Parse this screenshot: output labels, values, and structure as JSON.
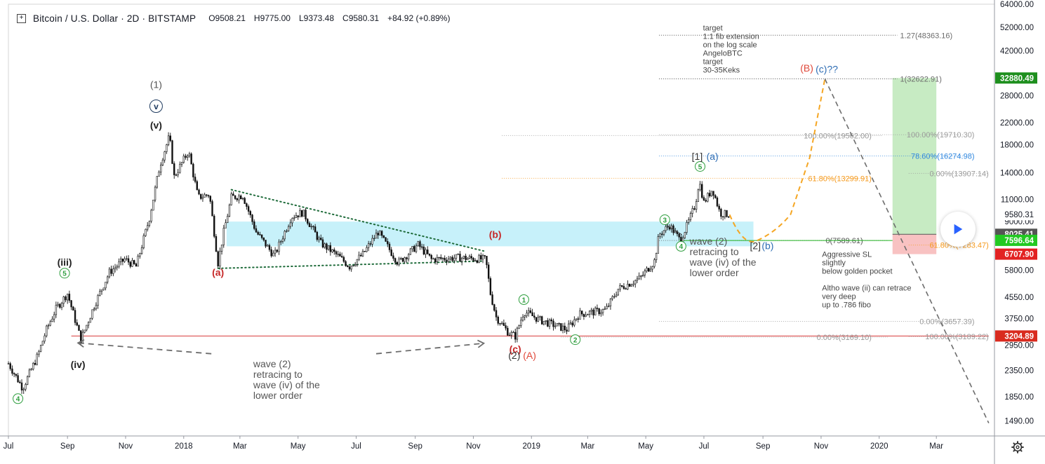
{
  "header": {
    "expand_icon": "plus-square-icon",
    "symbol": "Bitcoin / U.S. Dollar · 2D · BITSTAMP",
    "open": "O9508.21",
    "high": "H9775.00",
    "low": "L9373.48",
    "close": "C9580.31",
    "change": "+84.92 (+0.89%)"
  },
  "controls": {
    "play_icon": "play-icon",
    "settings_icon": "gear-icon"
  },
  "chart_data": {
    "type": "line",
    "title": "Bitcoin / U.S. Dollar · 2D · BITSTAMP",
    "scale": "log",
    "ylim": [
      1300,
      64000
    ],
    "xlim": [
      "2017-07-01",
      "2020-05-01"
    ],
    "x_ticks": [
      {
        "date": "2017-07-01",
        "label": "Jul"
      },
      {
        "date": "2017-09-01",
        "label": "Sep"
      },
      {
        "date": "2017-11-01",
        "label": "Nov"
      },
      {
        "date": "2018-01-01",
        "label": "2018"
      },
      {
        "date": "2018-03-01",
        "label": "Mar"
      },
      {
        "date": "2018-05-01",
        "label": "May"
      },
      {
        "date": "2018-07-01",
        "label": "Jul"
      },
      {
        "date": "2018-09-01",
        "label": "Sep"
      },
      {
        "date": "2018-11-01",
        "label": "Nov"
      },
      {
        "date": "2019-01-01",
        "label": "2019"
      },
      {
        "date": "2019-03-01",
        "label": "Mar"
      },
      {
        "date": "2019-05-01",
        "label": "May"
      },
      {
        "date": "2019-07-01",
        "label": "Jul"
      },
      {
        "date": "2019-09-01",
        "label": "Sep"
      },
      {
        "date": "2019-11-01",
        "label": "Nov"
      },
      {
        "date": "2020-01-01",
        "label": "2020"
      },
      {
        "date": "2020-03-01",
        "label": "Mar"
      }
    ],
    "y_ticks": [
      {
        "v": 64000,
        "label": "64000.00"
      },
      {
        "v": 52000,
        "label": "52000.00"
      },
      {
        "v": 42000,
        "label": "42000.00"
      },
      {
        "v": 28000,
        "label": "28000.00"
      },
      {
        "v": 22000,
        "label": "22000.00"
      },
      {
        "v": 18000,
        "label": "18000.00"
      },
      {
        "v": 14000,
        "label": "14000.00"
      },
      {
        "v": 11000,
        "label": "11000.00"
      },
      {
        "v": 9000,
        "label": "9000.00"
      },
      {
        "v": 5800,
        "label": "5800.00"
      },
      {
        "v": 4550,
        "label": "4550.00"
      },
      {
        "v": 3750,
        "label": "3750.00"
      },
      {
        "v": 2950,
        "label": "2950.00"
      },
      {
        "v": 2350,
        "label": "2350.00"
      },
      {
        "v": 1850,
        "label": "1850.00"
      },
      {
        "v": 1490,
        "label": "1490.00"
      }
    ],
    "price_badges": [
      {
        "v": 32880.49,
        "label": "32880.49",
        "color": "#1e8f1e"
      },
      {
        "v": 9580.31,
        "label": "9580.31",
        "color": "#ffffff",
        "text": "#131722"
      },
      {
        "v": 8025.41,
        "label": "8025.41",
        "color": "#555555"
      },
      {
        "v": 7596.64,
        "label": "7596.64",
        "color": "#22c922"
      },
      {
        "v": 6707.9,
        "label": "6707.90",
        "color": "#e22222"
      },
      {
        "v": 3204.89,
        "label": "3204.89",
        "color": "#d92b1f"
      }
    ],
    "series": [
      {
        "name": "BTCUSD",
        "points": [
          [
            "2017-07-01",
            2500
          ],
          [
            "2017-07-16",
            2000
          ],
          [
            "2017-08-01",
            2700
          ],
          [
            "2017-08-10",
            3400
          ],
          [
            "2017-08-20",
            4100
          ],
          [
            "2017-09-01",
            4700
          ],
          [
            "2017-09-15",
            3100
          ],
          [
            "2017-09-30",
            4300
          ],
          [
            "2017-10-15",
            5700
          ],
          [
            "2017-10-31",
            6400
          ],
          [
            "2017-11-12",
            6000
          ],
          [
            "2017-11-26",
            9300
          ],
          [
            "2017-12-07",
            15000
          ],
          [
            "2017-12-17",
            19500
          ],
          [
            "2017-12-22",
            13500
          ],
          [
            "2018-01-06",
            17000
          ],
          [
            "2018-01-16",
            11200
          ],
          [
            "2018-01-28",
            11500
          ],
          [
            "2018-02-06",
            6200
          ],
          [
            "2018-02-12",
            8200
          ],
          [
            "2018-02-20",
            11200
          ],
          [
            "2018-03-04",
            11400
          ],
          [
            "2018-03-18",
            8200
          ],
          [
            "2018-04-06",
            6600
          ],
          [
            "2018-04-24",
            9400
          ],
          [
            "2018-05-06",
            9800
          ],
          [
            "2018-05-25",
            7400
          ],
          [
            "2018-06-12",
            6600
          ],
          [
            "2018-06-24",
            6000
          ],
          [
            "2018-07-08",
            6700
          ],
          [
            "2018-07-24",
            8200
          ],
          [
            "2018-08-14",
            6200
          ],
          [
            "2018-09-04",
            7300
          ],
          [
            "2018-09-18",
            6400
          ],
          [
            "2018-10-16",
            6500
          ],
          [
            "2018-11-14",
            6400
          ],
          [
            "2018-11-19",
            4700
          ],
          [
            "2018-11-25",
            3800
          ],
          [
            "2018-12-08",
            3300
          ],
          [
            "2018-12-15",
            3200
          ],
          [
            "2018-12-24",
            4000
          ],
          [
            "2019-01-10",
            3700
          ],
          [
            "2019-02-07",
            3400
          ],
          [
            "2019-02-20",
            3900
          ],
          [
            "2019-03-20",
            4050
          ],
          [
            "2019-04-02",
            4900
          ],
          [
            "2019-04-25",
            5400
          ],
          [
            "2019-05-10",
            6300
          ],
          [
            "2019-05-15",
            8000
          ],
          [
            "2019-05-26",
            8700
          ],
          [
            "2019-06-06",
            7600
          ],
          [
            "2019-06-14",
            8800
          ],
          [
            "2019-06-22",
            10500
          ],
          [
            "2019-06-26",
            13000
          ],
          [
            "2019-07-01",
            10700
          ],
          [
            "2019-07-10",
            12100
          ],
          [
            "2019-07-18",
            9700
          ],
          [
            "2019-07-28",
            9580
          ]
        ]
      }
    ],
    "projection": [
      [
        "2019-07-28",
        9580
      ],
      [
        "2019-08-26",
        7589.61
      ],
      [
        "2019-09-30",
        9600
      ],
      [
        "2019-10-20",
        16000
      ],
      [
        "2019-11-05",
        32622.91
      ]
    ],
    "channel_zone": {
      "from": "2018-02-15",
      "to": "2019-08-22",
      "low": 7200,
      "high": 9000
    },
    "support_line": {
      "v": 3204.89,
      "from": "2017-09-05",
      "to": "2020-04-25"
    },
    "triangle_upper": [
      [
        "2018-02-20",
        12000
      ],
      [
        "2018-11-12",
        6900
      ]
    ],
    "triangle_lower": [
      [
        "2018-02-06",
        5900
      ],
      [
        "2018-11-12",
        6300
      ]
    ],
    "breakdown_line": [
      [
        "2019-11-05",
        32622.91
      ],
      [
        "2020-04-25",
        1460
      ]
    ],
    "target_levels": [
      {
        "v": 48363.16,
        "from": "2019-05-15",
        "to": "2020-01-20",
        "label": "1.27(48363.16)",
        "color": "#6b6b6b"
      },
      {
        "v": 32622.91,
        "from": "2019-05-15",
        "to": "2020-01-20",
        "label": "1(32622.91)",
        "color": "#6b6b6b"
      }
    ],
    "fib_levels": [
      {
        "v": 19562,
        "from": "2018-12-01",
        "to": "2020-01-05",
        "label": "100.00%(19562.00)",
        "color": "#9a9a9a",
        "label_date": "2019-12-24"
      },
      {
        "v": 13299.91,
        "from": "2018-12-01",
        "to": "2019-12-20",
        "label": "61.80%(13299.91)",
        "color": "#f59a1e",
        "label_date": "2019-12-24"
      },
      {
        "v": 7589.61,
        "from": "2019-05-15",
        "to": "2020-01-10",
        "label": "0(7589.61)",
        "color": "#555555",
        "label_date": "2019-12-15"
      },
      {
        "v": 19710.3,
        "from": "2019-05-15",
        "to": "2020-03-30",
        "label": "100.00%(19710.30)",
        "color": "#9a9a9a",
        "label_date": "2020-04-10"
      },
      {
        "v": 16274.98,
        "from": "2019-05-15",
        "to": "2020-03-30",
        "label": "78.60%(16274.98)",
        "color": "#2e86de",
        "label_date": "2020-04-10"
      },
      {
        "v": 13907.14,
        "from": "2020-02-01",
        "to": "2020-04-25",
        "label": "0.00%(13907.14)",
        "color": "#9a9a9a",
        "label_date": "2020-04-25"
      },
      {
        "v": 7283.47,
        "from": "2020-02-01",
        "to": "2020-03-30",
        "label": "61.80%(7283.47)",
        "color": "#f59a1e",
        "label_date": "2020-04-25"
      },
      {
        "v": 3657.39,
        "from": "2019-05-15",
        "to": "2020-03-30",
        "label": "0.00%(3657.39)",
        "color": "#9a9a9a",
        "label_date": "2020-04-10"
      },
      {
        "v": 3169.1,
        "from": "2019-02-01",
        "to": "2020-01-10",
        "label": "0.00%(3169.10)",
        "color": "#9a9a9a",
        "label_date": "2019-12-24"
      },
      {
        "v": 3189.22,
        "from": "2020-02-01",
        "to": "2020-04-25",
        "label": "100.00%(3189.22)",
        "color": "#9a9a9a",
        "label_date": "2020-04-25"
      }
    ],
    "long_position": {
      "from": "2020-01-15",
      "to": "2020-03-01",
      "entry": 8025.41,
      "target": 32880.49,
      "stop": 6707.9
    },
    "wave_labels": [
      {
        "text": "(1)",
        "date": "2017-12-03",
        "v": 31000,
        "color": "#555555",
        "style": "plain",
        "size": 14
      },
      {
        "text": "v",
        "date": "2017-12-03",
        "v": 25500,
        "color": "#1e3a5f",
        "style": "circle",
        "size": 12
      },
      {
        "text": "(v)",
        "date": "2017-12-03",
        "v": 21500,
        "color": "#222222",
        "style": "bold",
        "size": 14
      },
      {
        "text": "(iii)",
        "date": "2017-08-29",
        "v": 6250,
        "color": "#222222",
        "style": "bold",
        "size": 14
      },
      {
        "text": "5",
        "date": "2017-08-29",
        "v": 5650,
        "color": "#2e9e3e",
        "style": "circle",
        "size": 10
      },
      {
        "text": "(iv)",
        "date": "2017-09-12",
        "v": 2480,
        "color": "#222222",
        "style": "bold",
        "size": 14
      },
      {
        "text": "4",
        "date": "2017-07-11",
        "v": 1820,
        "color": "#2e9e3e",
        "style": "circle",
        "size": 10
      },
      {
        "text": "(a)",
        "date": "2018-02-06",
        "v": 5700,
        "color": "#c62828",
        "style": "bold",
        "size": 14
      },
      {
        "text": "(b)",
        "date": "2018-11-24",
        "v": 8000,
        "color": "#c62828",
        "style": "bold",
        "size": 14
      },
      {
        "text": "(c)",
        "date": "2018-12-15",
        "v": 2850,
        "color": "#c62828",
        "style": "bold",
        "size": 14
      },
      {
        "text": "(2)",
        "date": "2018-12-14",
        "v": 2690,
        "color": "#333333",
        "style": "plain",
        "size": 14
      },
      {
        "text": "(A)",
        "date": "2018-12-30",
        "v": 2690,
        "color": "#e0483a",
        "style": "plain",
        "size": 14
      },
      {
        "text": "1",
        "date": "2018-12-24",
        "v": 4450,
        "color": "#2e9e3e",
        "style": "circle",
        "size": 10
      },
      {
        "text": "2",
        "date": "2019-02-16",
        "v": 3100,
        "color": "#2e9e3e",
        "style": "circle",
        "size": 10
      },
      {
        "text": "3",
        "date": "2019-05-21",
        "v": 9150,
        "color": "#2e9e3e",
        "style": "circle",
        "size": 10
      },
      {
        "text": "4",
        "date": "2019-06-07",
        "v": 7200,
        "color": "#2e9e3e",
        "style": "circle",
        "size": 10
      },
      {
        "text": "5",
        "date": "2019-06-27",
        "v": 14800,
        "color": "#2e9e3e",
        "style": "circle",
        "size": 10
      },
      {
        "text": "[1]",
        "date": "2019-06-24",
        "v": 16200,
        "color": "#333333",
        "style": "plain",
        "size": 14
      },
      {
        "text": "(a)",
        "date": "2019-07-10",
        "v": 16200,
        "color": "#2e6db4",
        "style": "plain",
        "size": 14
      },
      {
        "text": "[2]",
        "date": "2019-08-24",
        "v": 7250,
        "color": "#333333",
        "style": "plain",
        "size": 14
      },
      {
        "text": "(b)",
        "date": "2019-09-06",
        "v": 7250,
        "color": "#2e6db4",
        "style": "plain",
        "size": 14
      },
      {
        "text": "(B)",
        "date": "2019-10-17",
        "v": 36000,
        "color": "#e0483a",
        "style": "plain",
        "size": 14
      },
      {
        "text": "(c)??",
        "date": "2019-11-07",
        "v": 35700,
        "color": "#2e6db4",
        "style": "plain",
        "size": 14
      }
    ],
    "annotations": [
      {
        "lines": [
          "wave (2)",
          "retracing to",
          "wave (iv) of the",
          "lower order"
        ],
        "date": "2018-03-15",
        "v": 2420,
        "color": "#555555",
        "size": 14
      },
      {
        "lines": [
          "wave (2)",
          "retracing to",
          "wave (iv) of the",
          "lower order"
        ],
        "date": "2019-06-16",
        "v": 7320,
        "color": "#555555",
        "size": 14
      },
      {
        "lines": [
          "Aggressive SL",
          "slightly",
          "below golden pocket",
          "",
          "Altho wave (ii) can retrace",
          "very deep",
          "up to .786 fibo"
        ],
        "date": "2019-11-02",
        "v": 6550,
        "color": "#444444",
        "size": 11
      },
      {
        "lines": [
          "target",
          "1:1 fib extension",
          "on the log scale",
          "AngeloBTC",
          "target",
          "30-35Keks"
        ],
        "date": "2019-06-30",
        "v": 50500,
        "color": "#444444",
        "size": 11
      }
    ],
    "wave2_arrows": [
      {
        "from": [
          "2018-01-30",
          2730
        ],
        "to": [
          "2017-09-12",
          3010
        ]
      },
      {
        "from": [
          "2018-07-22",
          2730
        ],
        "to": [
          "2018-11-12",
          3000
        ]
      }
    ]
  }
}
